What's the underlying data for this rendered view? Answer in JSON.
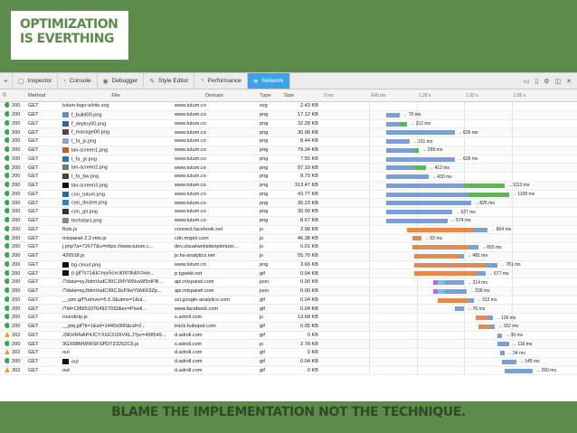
{
  "slide": {
    "title_line1": "OPTIMIZATION",
    "title_line2": "IS EVERTHING",
    "caption": "BLAME THE IMPLEMENTATION NOT THE TECHNIQUE."
  },
  "toolbar": {
    "tabs": [
      {
        "icon": "inspector-icon",
        "glyph": "▢",
        "label": "Inspector"
      },
      {
        "icon": "console-icon",
        "glyph": "›",
        "label": "Console"
      },
      {
        "icon": "debugger-icon",
        "glyph": "◉",
        "label": "Debugger"
      },
      {
        "icon": "style-editor-icon",
        "glyph": "✎",
        "label": "Style Editor"
      },
      {
        "icon": "performance-icon",
        "glyph": "◔",
        "label": "Performance"
      },
      {
        "icon": "network-icon",
        "glyph": "≋",
        "label": "Network",
        "active": true
      }
    ]
  },
  "columns": {
    "method": "Method",
    "file": "File",
    "domain": "Domain",
    "type": "Type",
    "size": "Size",
    "ticks": [
      "0 ms",
      "640 ms",
      "1.28 s",
      "1.92 s",
      "2.56 s"
    ]
  },
  "colors": {
    "slide_bg": "#5d8b4b",
    "status_ok": "#35a852",
    "status_redirect": "#f0a020",
    "bar_wait": "#7b9fd4",
    "bar_receive": "#4fbf4f",
    "bar_connect": "#e38a4f",
    "bar_dns": "#d05fd0",
    "bar_blocked": "#6fc0e6"
  },
  "rows": [
    {
      "status": "ok",
      "code": "200",
      "method": "GET",
      "file": "tutum-logo-white.svg",
      "domain": "www.tutum.co",
      "type": "svg",
      "size": "2.43 KB",
      "time": ""
    },
    {
      "status": "ok",
      "code": "200",
      "method": "GET",
      "file": "f_build00.png",
      "domain": "www.tutum.co",
      "type": "png",
      "size": "17.12 KB",
      "time": "→ 70 ms"
    },
    {
      "status": "ok",
      "code": "200",
      "method": "GET",
      "file": "f_deploy00.png",
      "domain": "www.tutum.co",
      "type": "png",
      "size": "32.28 KB",
      "time": "→ 212 ms"
    },
    {
      "status": "ok",
      "code": "200",
      "method": "GET",
      "file": "f_manage00.png",
      "domain": "www.tutum.co",
      "type": "png",
      "size": "30.98 KB",
      "time": "→ 626 ms"
    },
    {
      "status": "ok",
      "code": "200",
      "method": "GET",
      "file": "t_fa_js.png",
      "domain": "www.tutum.co",
      "type": "png",
      "size": "8.44 KB",
      "time": "→ 211 ms"
    },
    {
      "status": "ok",
      "code": "200",
      "method": "GET",
      "file": "lan-screen1.png",
      "domain": "www.tutum.co",
      "type": "png",
      "size": "79.34 KB",
      "time": "→ 299 ms"
    },
    {
      "status": "ok",
      "code": "200",
      "method": "GET",
      "file": "t_fa_gr.png",
      "domain": "www.tutum.co",
      "type": "png",
      "size": "7.55 KB",
      "time": "→ 626 ms"
    },
    {
      "status": "ok",
      "code": "200",
      "method": "GET",
      "file": "lan-screen2.png",
      "domain": "www.tutum.co",
      "type": "png",
      "size": "97.19 KB",
      "time": "→ 412 ms"
    },
    {
      "status": "ok",
      "code": "200",
      "method": "GET",
      "file": "t_fa_bw.png",
      "domain": "www.tutum.co",
      "type": "png",
      "size": "8.79 KB",
      "time": "→ 430 ms"
    },
    {
      "status": "ok",
      "code": "200",
      "method": "GET",
      "file": "lan-screen3.png",
      "domain": "www.tutum.co",
      "type": "png",
      "size": "313.47 KB",
      "time": "→ 1113 ms"
    },
    {
      "status": "ok",
      "code": "200",
      "method": "GET",
      "file": "con_tutum.png",
      "domain": "www.tutum.co",
      "type": "png",
      "size": "43.77 KB",
      "time": "→ 1158 ms"
    },
    {
      "status": "ok",
      "code": "200",
      "method": "GET",
      "file": "con_docker.png",
      "domain": "www.tutum.co",
      "type": "png",
      "size": "30.23 KB",
      "time": "→ 825 ms"
    },
    {
      "status": "ok",
      "code": "200",
      "method": "GET",
      "file": "con_git.png",
      "domain": "www.tutum.co",
      "type": "png",
      "size": "30.99 KB",
      "time": "→ 627 ms"
    },
    {
      "status": "ok",
      "code": "200",
      "method": "GET",
      "file": "techstars.png",
      "domain": "www.tutum.co",
      "type": "png",
      "size": "8.67 KB",
      "time": "→ 574 ms"
    },
    {
      "status": "ok",
      "code": "200",
      "method": "GET",
      "file": "fbds.js",
      "domain": "connect.facebook.net",
      "type": "js",
      "size": "2.98 KB",
      "time": "→ 804 ms"
    },
    {
      "status": "ok",
      "code": "200",
      "method": "GET",
      "file": "mixpanel-2.2-min.js",
      "domain": "cdn.mxpnl.com",
      "type": "js",
      "size": "46.38 KB",
      "time": "→ 93 ms"
    },
    {
      "status": "ok",
      "code": "200",
      "method": "GET",
      "file": "j.php?a=72677&u=https://www.tutum.c...",
      "domain": "dev.visualwebsiteoptimizer...",
      "type": "js",
      "size": "0.01 KB",
      "time": "→ 655 ms"
    },
    {
      "status": "ok",
      "code": "200",
      "method": "GET",
      "file": "426518.js",
      "domain": "js.hs-analytics.net",
      "type": "js",
      "size": "55.70 KB",
      "time": "→ 481 ms"
    },
    {
      "status": "ok",
      "code": "200",
      "method": "GET",
      "file": "bg-cloud.png",
      "domain": "www.tutum.co",
      "type": "png",
      "size": "3.66 KB",
      "time": "→ 781 ms"
    },
    {
      "status": "ok",
      "code": "200",
      "method": "GET",
      "file": "p.gif?s=1&k=nyy5cxc&ht=tk&h=ww...",
      "domain": "p.typekit.net",
      "type": "gif",
      "size": "0.04 KB",
      "time": "→ 677 ms"
    },
    {
      "status": "ok",
      "code": "200",
      "method": "GET",
      "file": "/?data=eyJldmVudCI6ICJMYW5kaW5nIFB...",
      "domain": "api.mixpanel.com",
      "type": "json",
      "size": "0.00 KB",
      "time": "→ 314 ms"
    },
    {
      "status": "ok",
      "code": "200",
      "method": "GET",
      "file": "/?data=eyJldmVudCI6ICJtcF9wYWdlX3Zp...",
      "domain": "api.mixpanel.com",
      "type": "json",
      "size": "0.00 KB",
      "time": "→ 339 ms"
    },
    {
      "status": "ok",
      "code": "200",
      "method": "GET",
      "file": "__utm.gif?utmwv=5.6.3&utms=1&ut...",
      "domain": "ssl.google-analytics.com",
      "type": "gif",
      "size": "0.04 KB",
      "time": "→ 313 ms"
    },
    {
      "status": "ok",
      "code": "200",
      "method": "GET",
      "file": "/?id=1386510764927032&ev=Pixell...",
      "domain": "www.facebook.com",
      "type": "gif",
      "size": "0.04 KB",
      "time": "→ 76 ms"
    },
    {
      "status": "ok",
      "code": "200",
      "method": "GET",
      "file": "roundtrip.js",
      "domain": "s.adroll.com",
      "type": "js",
      "size": "13.68 KB",
      "time": "→ 136 ms"
    },
    {
      "status": "ok",
      "code": "200",
      "method": "GET",
      "file": "__ptq.gif?k=1&sd=1440x900&cd=2...",
      "domain": "track.hubspot.com",
      "type": "gif",
      "size": "0.05 KB",
      "time": "→ 152 ms"
    },
    {
      "status": "redirect",
      "code": "302",
      "method": "GET",
      "file": "J3KHNNAP4JCYXGCO26VKLJ?pv=498549...",
      "domain": "d.adroll.com",
      "type": "gif",
      "size": "0 KB",
      "time": "→ 39 ms"
    },
    {
      "status": "ok",
      "code": "200",
      "method": "GET",
      "file": "3GX6BMWIRSFSPDTZ3252C6.js",
      "domain": "s.adroll.com",
      "type": "js",
      "size": "2.78 KB",
      "time": "→ 116 ms"
    },
    {
      "status": "redirect",
      "code": "302",
      "method": "GET",
      "file": "out",
      "domain": "d.adroll.com",
      "type": "gif",
      "size": "0 KB",
      "time": "→ 34 ms"
    },
    {
      "status": "ok",
      "code": "200",
      "method": "GET",
      "file": "out",
      "domain": "d.adroll.com",
      "type": "gif",
      "size": "0.04 KB",
      "time": "→ 145 ms"
    },
    {
      "status": "redirect",
      "code": "302",
      "method": "GET",
      "file": "out",
      "domain": "d.adroll.com",
      "type": "gif",
      "size": "0 KB",
      "time": "→ 260 ms"
    }
  ],
  "waterfall": [
    {
      "start": 0,
      "segs": []
    },
    {
      "start": 0.27,
      "segs": [
        [
          "wait",
          0.06
        ]
      ]
    },
    {
      "start": 0.27,
      "segs": [
        [
          "wait",
          0.06
        ],
        [
          "receive",
          0.03
        ]
      ]
    },
    {
      "start": 0.27,
      "segs": [
        [
          "wait",
          0.29
        ]
      ]
    },
    {
      "start": 0.27,
      "segs": [
        [
          "wait",
          0.1
        ]
      ]
    },
    {
      "start": 0.27,
      "segs": [
        [
          "wait",
          0.12
        ],
        [
          "receive",
          0.02
        ]
      ]
    },
    {
      "start": 0.27,
      "segs": [
        [
          "wait",
          0.29
        ]
      ]
    },
    {
      "start": 0.27,
      "segs": [
        [
          "wait",
          0.12
        ],
        [
          "receive",
          0.05
        ]
      ]
    },
    {
      "start": 0.27,
      "segs": [
        [
          "wait",
          0.18
        ]
      ]
    },
    {
      "start": 0.27,
      "segs": [
        [
          "wait",
          0.33
        ],
        [
          "receive",
          0.17
        ]
      ]
    },
    {
      "start": 0.27,
      "segs": [
        [
          "wait",
          0.35
        ],
        [
          "receive",
          0.17
        ]
      ]
    },
    {
      "start": 0.27,
      "segs": [
        [
          "wait",
          0.36
        ]
      ]
    },
    {
      "start": 0.27,
      "segs": [
        [
          "wait",
          0.28
        ]
      ]
    },
    {
      "start": 0.27,
      "segs": [
        [
          "wait",
          0.26
        ]
      ]
    },
    {
      "start": 0.36,
      "segs": [
        [
          "connect",
          0.28
        ],
        [
          "wait",
          0.06
        ]
      ]
    },
    {
      "start": 0.38,
      "segs": [
        [
          "connect",
          0.04
        ]
      ]
    },
    {
      "start": 0.38,
      "segs": [
        [
          "connect",
          0.24
        ],
        [
          "wait",
          0.04
        ]
      ]
    },
    {
      "start": 0.39,
      "segs": [
        [
          "connect",
          0.19
        ],
        [
          "wait",
          0.02
        ]
      ]
    },
    {
      "start": 0.39,
      "segs": [
        [
          "connect",
          0.3
        ],
        [
          "wait",
          0.05
        ]
      ]
    },
    {
      "start": 0.39,
      "segs": [
        [
          "connect",
          0.26
        ],
        [
          "wait",
          0.04
        ]
      ]
    },
    {
      "start": 0.47,
      "segs": [
        [
          "dns",
          0.02
        ],
        [
          "blocked",
          0.03
        ],
        [
          "wait",
          0.08
        ]
      ]
    },
    {
      "start": 0.47,
      "segs": [
        [
          "dns",
          0.02
        ],
        [
          "blocked",
          0.03
        ],
        [
          "wait",
          0.09
        ]
      ]
    },
    {
      "start": 0.49,
      "segs": [
        [
          "connect",
          0.13
        ],
        [
          "wait",
          0.02
        ]
      ]
    },
    {
      "start": 0.56,
      "segs": [
        [
          "wait",
          0.04
        ]
      ]
    },
    {
      "start": 0.65,
      "segs": [
        [
          "connect",
          0.05
        ],
        [
          "wait",
          0.02
        ]
      ]
    },
    {
      "start": 0.66,
      "segs": [
        [
          "connect",
          0.05
        ],
        [
          "wait",
          0.02
        ]
      ]
    },
    {
      "start": 0.74,
      "segs": [
        [
          "wait",
          0.02
        ]
      ]
    },
    {
      "start": 0.74,
      "segs": [
        [
          "wait",
          0.05
        ]
      ]
    },
    {
      "start": 0.75,
      "segs": [
        [
          "wait",
          0.02
        ]
      ]
    },
    {
      "start": 0.76,
      "segs": [
        [
          "wait",
          0.06
        ]
      ]
    },
    {
      "start": 0.77,
      "segs": [
        [
          "wait",
          0.12
        ]
      ]
    }
  ]
}
